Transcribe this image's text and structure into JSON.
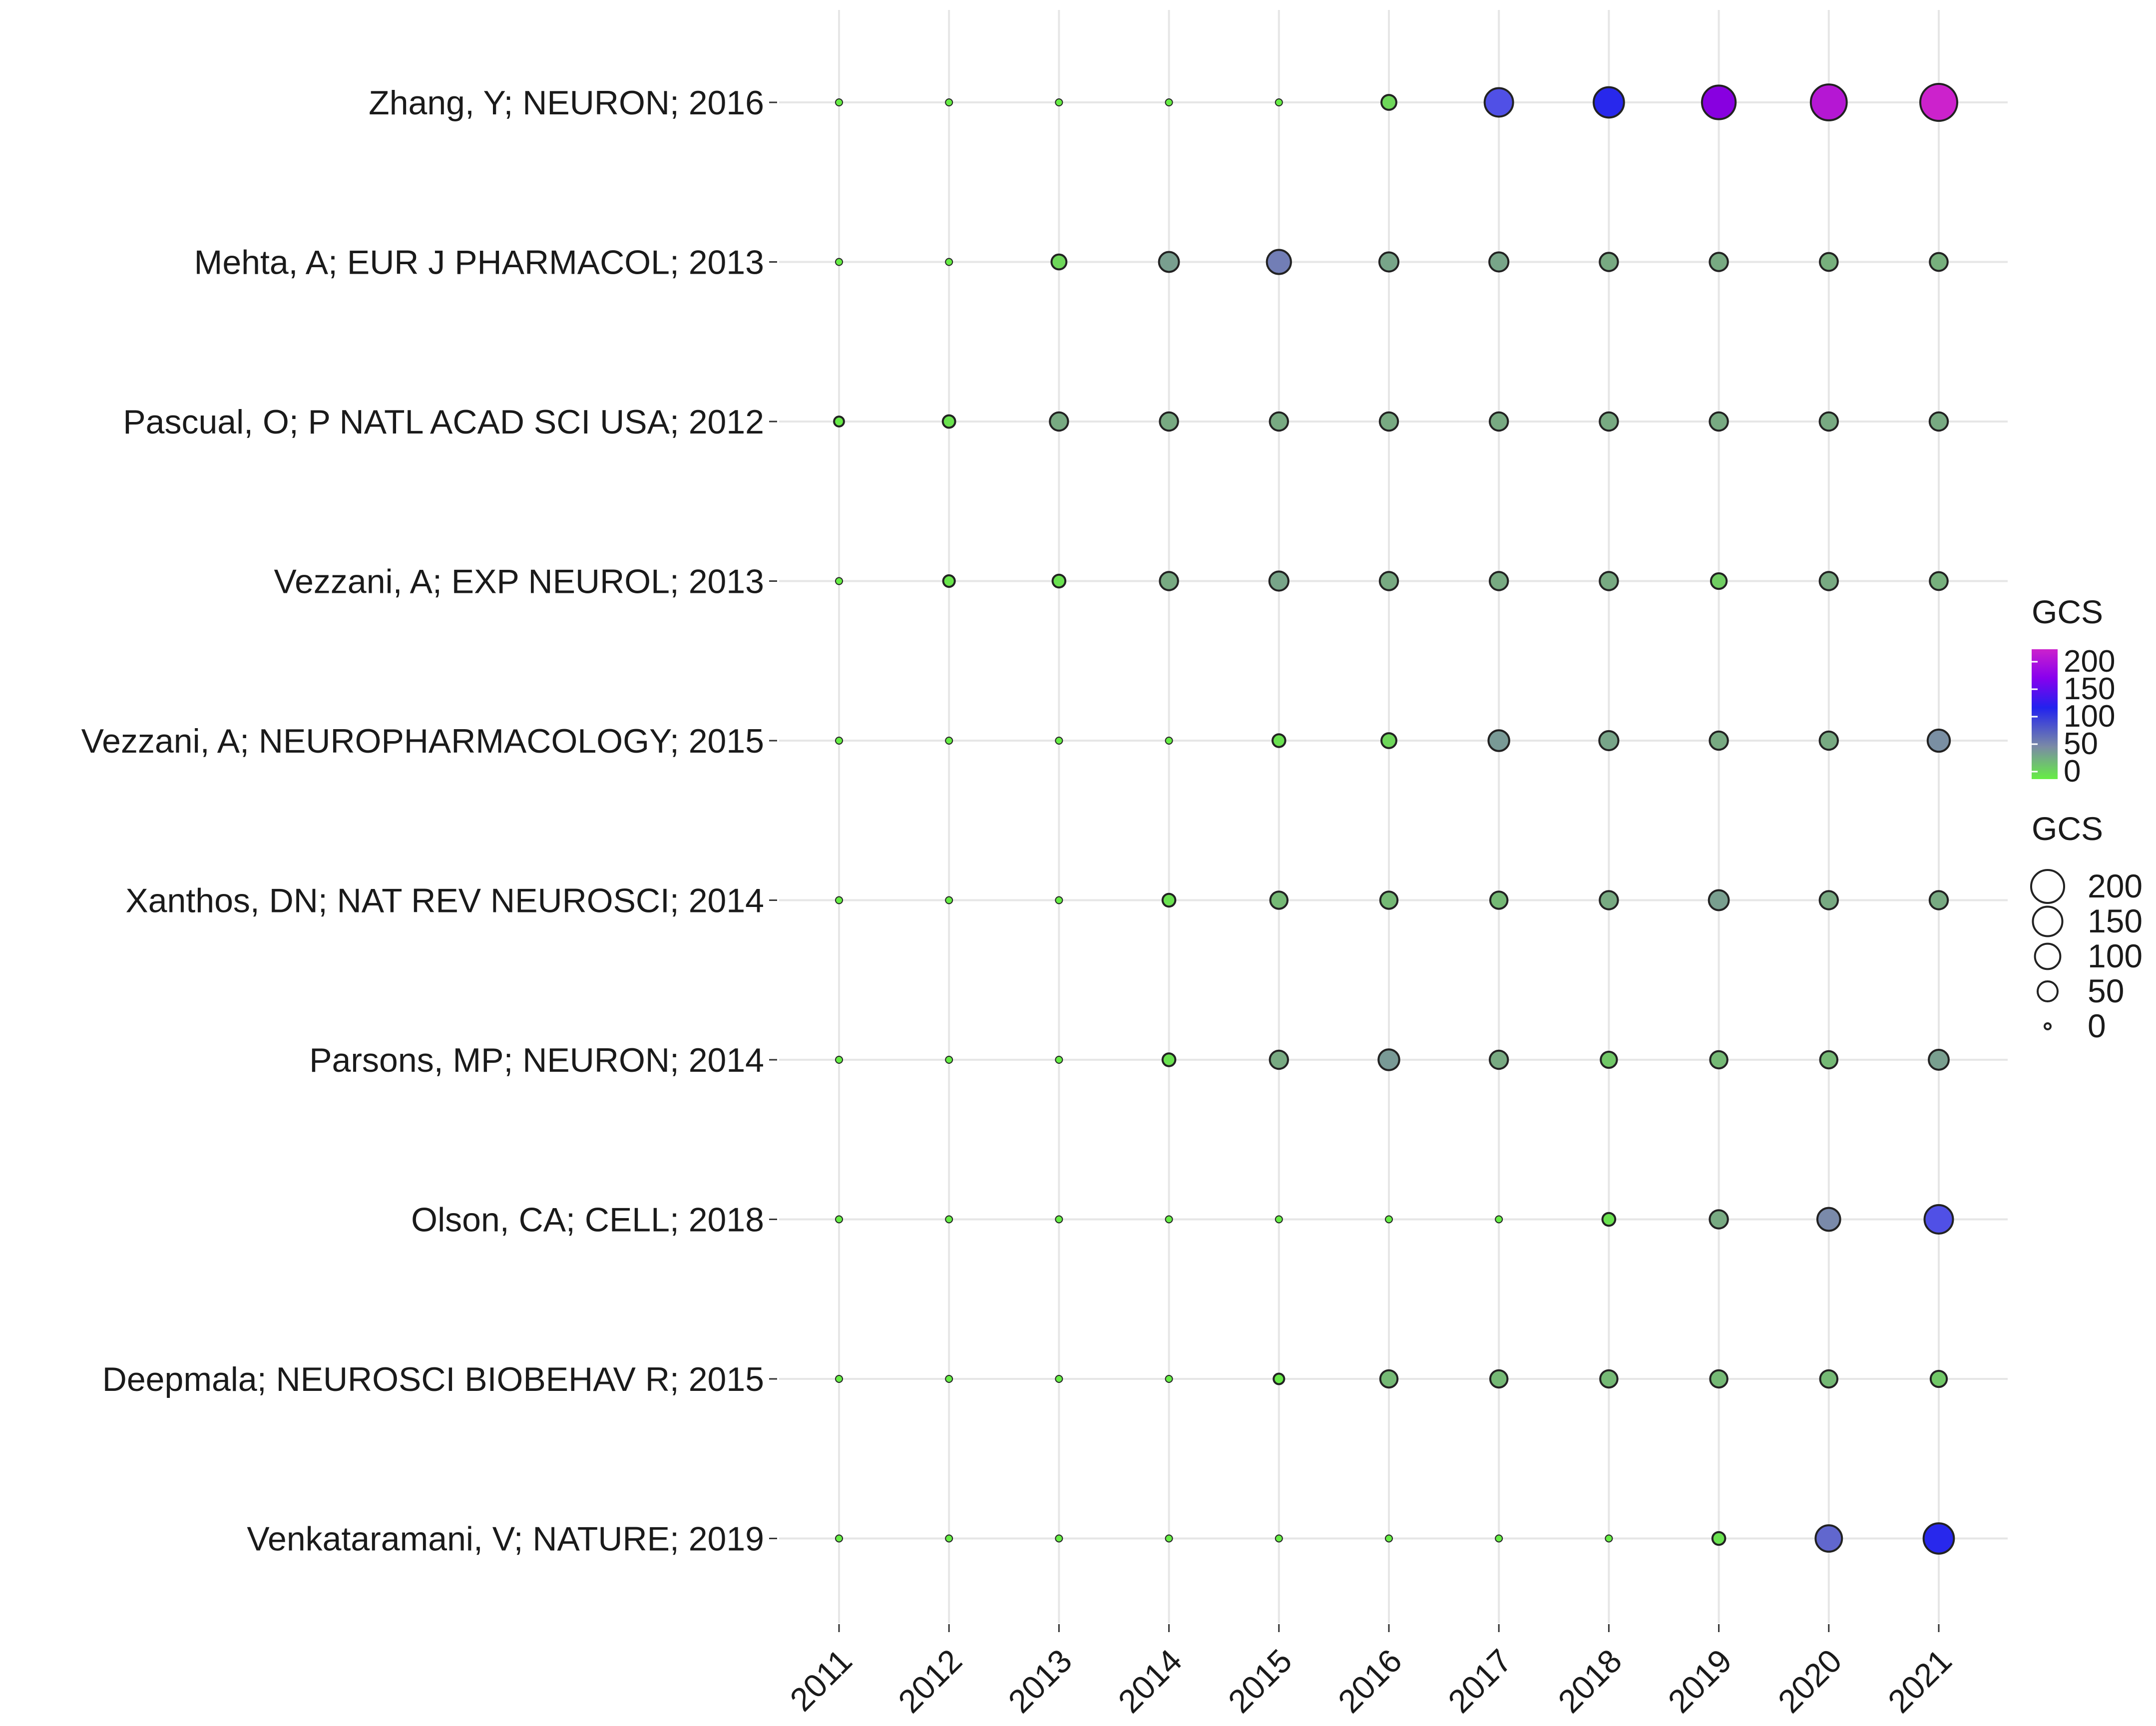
{
  "chart_data": {
    "type": "scatter",
    "subtype": "bubble",
    "x": [
      "2011",
      "2012",
      "2013",
      "2014",
      "2015",
      "2016",
      "2017",
      "2018",
      "2019",
      "2020",
      "2021"
    ],
    "rows": [
      {
        "label": "Zhang, Y; NEURON; 2016",
        "values": [
          0,
          0,
          0,
          0,
          0,
          15,
          110,
          130,
          170,
          200,
          215
        ]
      },
      {
        "label": "Mehta, A; EUR J PHARMACOL; 2013",
        "values": [
          0,
          0,
          15,
          40,
          70,
          35,
          35,
          30,
          30,
          28,
          28
        ]
      },
      {
        "label": "Pascual, O; P NATL ACAD SCI USA; 2012",
        "values": [
          2,
          7,
          30,
          30,
          30,
          30,
          30,
          30,
          30,
          30,
          30
        ]
      },
      {
        "label": "Vezzani, A; EXP NEUROL; 2013",
        "values": [
          0,
          5,
          8,
          30,
          35,
          30,
          30,
          30,
          18,
          30,
          28
        ]
      },
      {
        "label": "Vezzani, A; NEUROPHARMACOLOGY; 2015",
        "values": [
          0,
          0,
          0,
          0,
          8,
          15,
          45,
          35,
          30,
          30,
          55
        ]
      },
      {
        "label": "Xanthos, DN; NAT REV NEUROSCI; 2014",
        "values": [
          0,
          0,
          0,
          8,
          25,
          25,
          25,
          30,
          40,
          30,
          30
        ]
      },
      {
        "label": "Parsons, MP; NEURON; 2014",
        "values": [
          0,
          0,
          0,
          8,
          30,
          45,
          30,
          20,
          25,
          25,
          40
        ]
      },
      {
        "label": "Olson, CA; CELL; 2018",
        "values": [
          0,
          0,
          0,
          0,
          0,
          0,
          0,
          8,
          30,
          60,
          110
        ]
      },
      {
        "label": "Deepmala; NEUROSCI BIOBEHAV R; 2015",
        "values": [
          0,
          0,
          0,
          0,
          3,
          25,
          25,
          25,
          25,
          25,
          20
        ]
      },
      {
        "label": "Venkataramani, V; NATURE; 2019",
        "values": [
          0,
          0,
          0,
          0,
          0,
          0,
          0,
          0,
          8,
          90,
          130
        ]
      }
    ],
    "color_legend": {
      "title": "GCS",
      "ticks": [
        "200",
        "150",
        "100",
        "50",
        "0"
      ],
      "stops": [
        "#cc22cc",
        "#8800ee",
        "#2222ee",
        "#7a8aa6",
        "#66cc44"
      ]
    },
    "size_legend": {
      "title": "GCS",
      "ticks": [
        "200",
        "150",
        "100",
        "50",
        "0"
      ],
      "values": [
        200,
        150,
        100,
        50,
        0
      ]
    },
    "grid": true,
    "legend_position": "right"
  }
}
